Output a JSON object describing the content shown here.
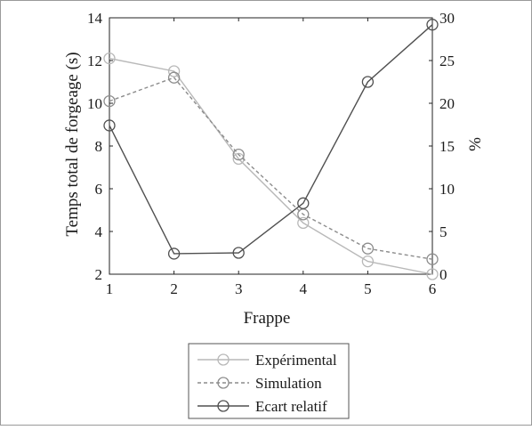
{
  "chart_data": {
    "type": "line",
    "x": [
      1,
      2,
      3,
      4,
      5,
      6
    ],
    "xlabel": "Frappe",
    "ylabel_left": "Temps total de forgeage (s)",
    "ylabel_right": "%",
    "xlim": [
      1,
      6
    ],
    "ylim_left": [
      2,
      14
    ],
    "ylim_right": [
      0,
      30
    ],
    "x_ticks": [
      "1",
      "2",
      "3",
      "4",
      "5",
      "6"
    ],
    "y_ticks_left": [
      "2",
      "4",
      "6",
      "8",
      "10",
      "12",
      "14"
    ],
    "y_ticks_right": [
      "0",
      "5",
      "10",
      "15",
      "20",
      "25",
      "30"
    ],
    "grid": false,
    "legend_position": "below",
    "series": [
      {
        "name": "Expérimental",
        "axis": "left",
        "values": [
          12.1,
          11.5,
          7.4,
          4.4,
          2.6,
          2.0
        ],
        "color": "#b8b8b8",
        "dash": "solid"
      },
      {
        "name": "Simulation",
        "axis": "left",
        "values": [
          10.1,
          11.2,
          7.6,
          4.8,
          3.2,
          2.7
        ],
        "color": "#8c8c8c",
        "dash": "dashed"
      },
      {
        "name": "Ecart relatif",
        "axis": "right",
        "values": [
          17.4,
          2.4,
          2.5,
          8.3,
          22.5,
          29.2
        ],
        "color": "#505050",
        "dash": "solid"
      }
    ]
  }
}
